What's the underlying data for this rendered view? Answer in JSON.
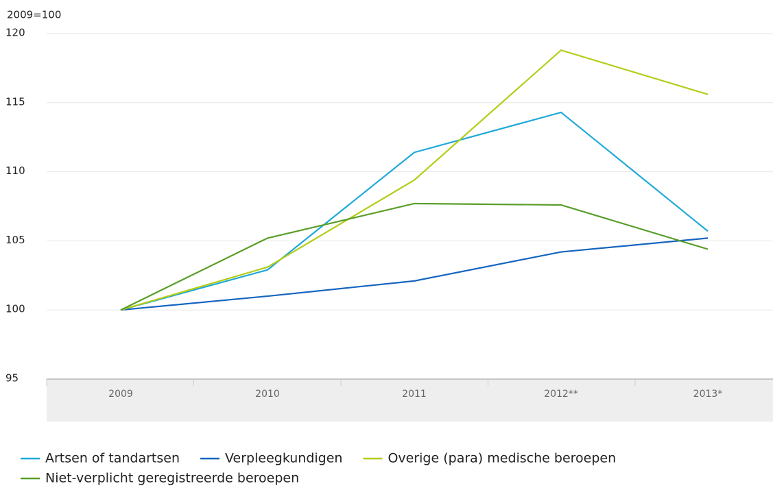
{
  "chart_data": {
    "type": "line",
    "y_axis_label": "2009=100",
    "categories": [
      "2009",
      "2010",
      "2011",
      "2012**",
      "2013*"
    ],
    "series": [
      {
        "name": "Artsen of tandartsen",
        "color": "#1fa9d9",
        "values": [
          100,
          102.9,
          111.4,
          114.3,
          105.7
        ]
      },
      {
        "name": "Verpleegkundigen",
        "color": "#1565c0",
        "values": [
          100,
          101.0,
          102.1,
          104.2,
          105.2
        ]
      },
      {
        "name": "Overige (para) medische beroepen",
        "color": "#b5cc18",
        "values": [
          100,
          103.1,
          109.4,
          118.8,
          115.6
        ]
      },
      {
        "name": "Niet-verplicht geregistreerde beroepen",
        "color": "#5a9e2a",
        "values": [
          100,
          105.2,
          107.7,
          107.6,
          104.4
        ]
      }
    ],
    "ylim": [
      95,
      120
    ],
    "yticks": [
      95,
      100,
      105,
      110,
      115,
      120
    ],
    "grid": true,
    "legend": "bottom"
  }
}
